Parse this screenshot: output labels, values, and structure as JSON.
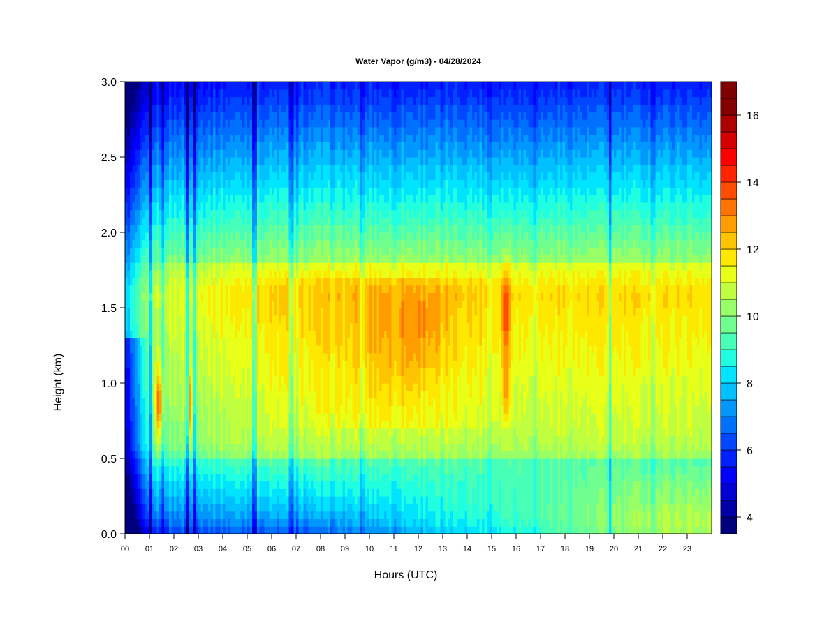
{
  "chart_data": {
    "type": "heatmap",
    "title": "Water Vapor (g/m3) - 04/28/2024",
    "xlabel": "Hours (UTC)",
    "ylabel": "Height (km)",
    "x_ticks": [
      "00",
      "01",
      "02",
      "03",
      "04",
      "05",
      "06",
      "07",
      "08",
      "09",
      "10",
      "11",
      "12",
      "13",
      "14",
      "15",
      "16",
      "17",
      "18",
      "19",
      "20",
      "21",
      "22",
      "23"
    ],
    "y_ticks": [
      "0.0",
      "0.5",
      "1.0",
      "1.5",
      "2.0",
      "2.5",
      "3.0"
    ],
    "xlim": [
      0,
      24
    ],
    "ylim": [
      0,
      3
    ],
    "colorbar": {
      "min": 3.5,
      "max": 17,
      "step": 0.5,
      "ticks": [
        "4",
        "6",
        "8",
        "10",
        "12",
        "14",
        "16"
      ],
      "colors": [
        "#00007f",
        "#0000a8",
        "#0000d4",
        "#0000ff",
        "#0020ff",
        "#0048ff",
        "#0070ff",
        "#0098ff",
        "#00c0ff",
        "#00e4ff",
        "#20ffdf",
        "#48ffb7",
        "#70ff8f",
        "#98ff67",
        "#c0ff3f",
        "#e8ff17",
        "#ffe800",
        "#ffc400",
        "#ff9c00",
        "#ff7400",
        "#ff4c00",
        "#ff2400",
        "#fc0000",
        "#d40000",
        "#ac0000",
        "#840000",
        "#7f0000"
      ]
    },
    "grid": false
  }
}
